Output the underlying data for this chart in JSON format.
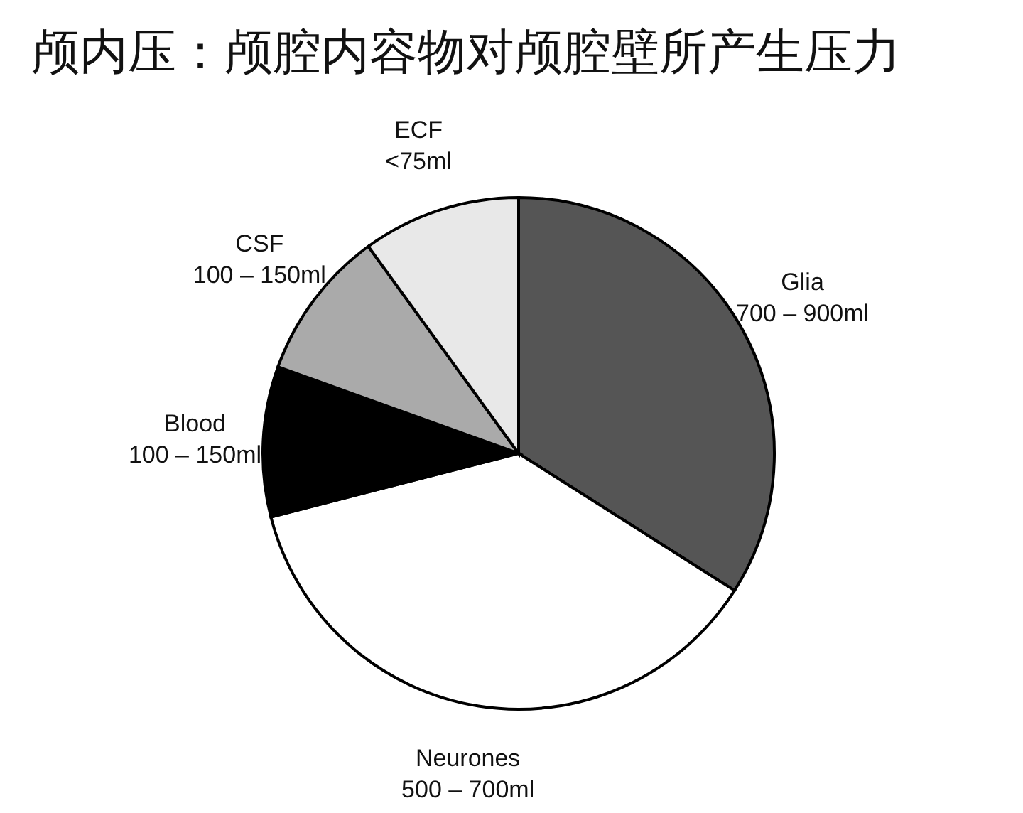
{
  "chart_data": {
    "type": "pie",
    "title": "颅内压：颅腔内容物对颅腔壁所产生压力",
    "categories": [
      "Glia\n700 – 900ml",
      "Neurones\n500 – 700ml",
      "Blood\n100 – 150ml",
      "CSF\n100 – 150ml",
      "ECF\n<75ml"
    ],
    "values": [
      34,
      37,
      9.5,
      9.5,
      10
    ],
    "colors": [
      "#555555",
      "#ffffff",
      "#000000",
      "#aaaaaa",
      "#e8e8e8"
    ],
    "legend": false
  }
}
